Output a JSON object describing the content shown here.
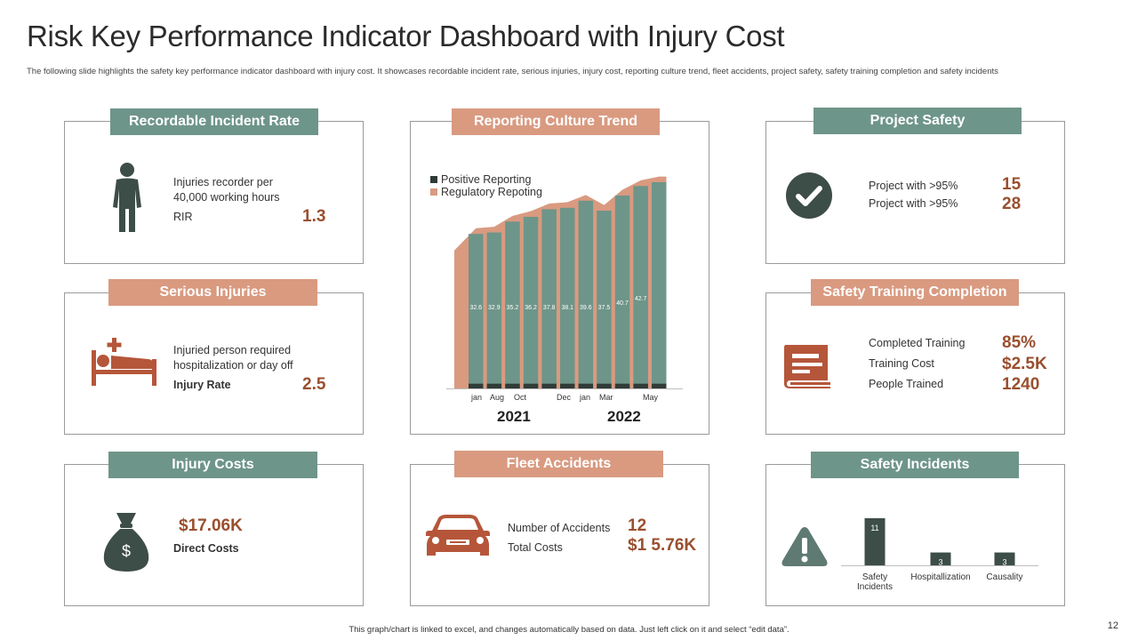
{
  "title": "Risk Key Performance Indicator Dashboard with Injury Cost",
  "subtitle": "The following slide highlights the  safety key performance indicator dashboard with injury cost. It showcases recordable incident rate, serious injuries, injury cost, reporting culture trend, fleet accidents, project safety, safety training completion and safety incidents",
  "colors": {
    "green": "#6e9589",
    "salmon": "#d99a80",
    "dark": "#3d4d48",
    "rust": "#b5563a",
    "value": "#9a4f2e"
  },
  "recordable": {
    "header": "Recordable Incident Rate",
    "desc_line1": "Injuries recorder  per",
    "desc_line2": "40,000 working hours",
    "metric_label": "RIR",
    "metric_value": "1.3",
    "icon": "person-icon"
  },
  "serious": {
    "header": "Serious Injuries",
    "desc_line1": "Injuried person required",
    "desc_line2": "hospitalization or day off",
    "metric_label": "Injury Rate",
    "metric_value": "2.5",
    "icon": "hospital-bed-icon"
  },
  "injury_costs": {
    "header": "Injury Costs",
    "value": "$17.06K",
    "label": "Direct Costs",
    "icon": "money-bag-icon",
    "bag_symbol": "$"
  },
  "reporting": {
    "header": "Reporting Culture Trend",
    "legend_positive": "Positive Reporting",
    "legend_regulatory": "Regulatory Repoting",
    "month_labels": [
      "jan",
      "Aug",
      "Oct",
      "Dec",
      "jan",
      "Mar",
      "May"
    ],
    "year_2021": "2021",
    "year_2022": "2022"
  },
  "fleet": {
    "header": "Fleet Accidents",
    "accidents_label": "Number of Accidents",
    "accidents_value": "12",
    "costs_label": "Total Costs",
    "costs_value": "$1 5.76K",
    "icon": "car-icon"
  },
  "project": {
    "header": "Project Safety",
    "row1_label": "Project with >95%",
    "row1_value": "15",
    "row2_label": "Project with >95%",
    "row2_value": "28",
    "icon": "check-circle-icon"
  },
  "training": {
    "header": "Safety Training Completion",
    "row1_label": "Completed Training",
    "row1_value": "85%",
    "row2_label": "Training Cost",
    "row2_value": "$2.5K",
    "row3_label": "People Trained",
    "row3_value": "1240",
    "icon": "book-icon"
  },
  "incidents": {
    "header": "Safety Incidents",
    "icon": "warning-icon"
  },
  "chart_data": [
    {
      "type": "bar",
      "x": [
        "jan",
        "",
        "Aug",
        "Oct",
        "",
        "Dec",
        "jan",
        "",
        "Mar",
        "",
        "May"
      ],
      "series": [
        {
          "name": "Positive Reporting",
          "values": [
            1,
            1,
            1,
            1,
            1,
            1,
            1,
            1,
            1,
            1,
            1
          ]
        },
        {
          "name": "Regulatory Repoting",
          "values": [
            32.6,
            32.9,
            35.2,
            36.2,
            37.8,
            38.1,
            39.6,
            37.5,
            40.7,
            42.7,
            43.5
          ]
        }
      ],
      "data_labels": [
        "32.6",
        "32.9",
        "35.2",
        "36.2",
        "37.8",
        "38.1",
        "39.6",
        "37.5",
        "40.7",
        "42.7",
        ""
      ],
      "legend": "top-left",
      "grid": false
    },
    {
      "type": "bar",
      "categories": [
        "Safety Incidents",
        "Hospitallization",
        "Causality"
      ],
      "values": [
        11,
        3,
        3
      ],
      "grid": false
    }
  ],
  "footer": "This graph/chart is linked to excel, and changes automatically based on data. Just left click on it and select “edit data”.",
  "page_number": "12"
}
